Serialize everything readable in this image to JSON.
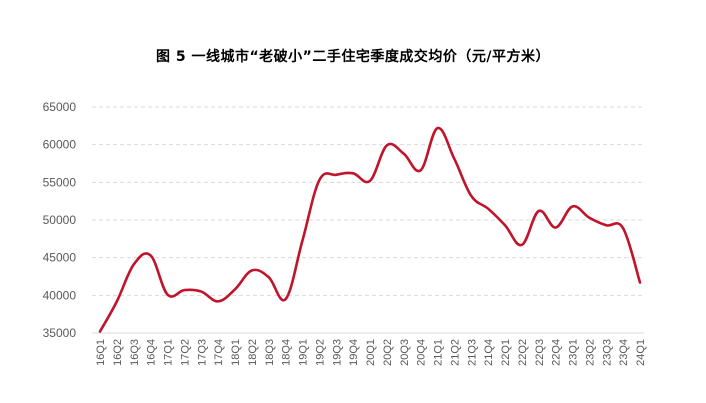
{
  "chart_data": {
    "type": "line",
    "title": "图 5   一线城市“老破小”二手住宅季度成交均价（元/平方米）",
    "categories": [
      "16Q1",
      "16Q2",
      "16Q3",
      "16Q4",
      "17Q1",
      "17Q2",
      "17Q3",
      "17Q4",
      "18Q1",
      "18Q2",
      "18Q3",
      "18Q4",
      "19Q1",
      "19Q2",
      "19Q3",
      "19Q4",
      "20Q1",
      "20Q2",
      "20Q3",
      "20Q4",
      "21Q1",
      "21Q2",
      "21Q3",
      "21Q4",
      "22Q1",
      "22Q2",
      "22Q3",
      "22Q4",
      "23Q1",
      "23Q2",
      "23Q3",
      "23Q4",
      "24Q1"
    ],
    "series": [
      {
        "values": [
          35200,
          39200,
          44100,
          45300,
          40100,
          40700,
          40500,
          39200,
          40800,
          43300,
          42400,
          39500,
          47300,
          55300,
          56000,
          56200,
          55200,
          59900,
          58800,
          56600,
          62200,
          58100,
          53200,
          51500,
          49300,
          46700,
          51200,
          49000,
          51800,
          50300,
          49300,
          48900,
          41700
        ]
      }
    ],
    "ylim": [
      35000,
      65000
    ],
    "yticks": [
      "35000",
      "40000",
      "45000",
      "50000",
      "55000",
      "60000",
      "65000"
    ],
    "grid": true,
    "line_color": "#C0142A"
  }
}
